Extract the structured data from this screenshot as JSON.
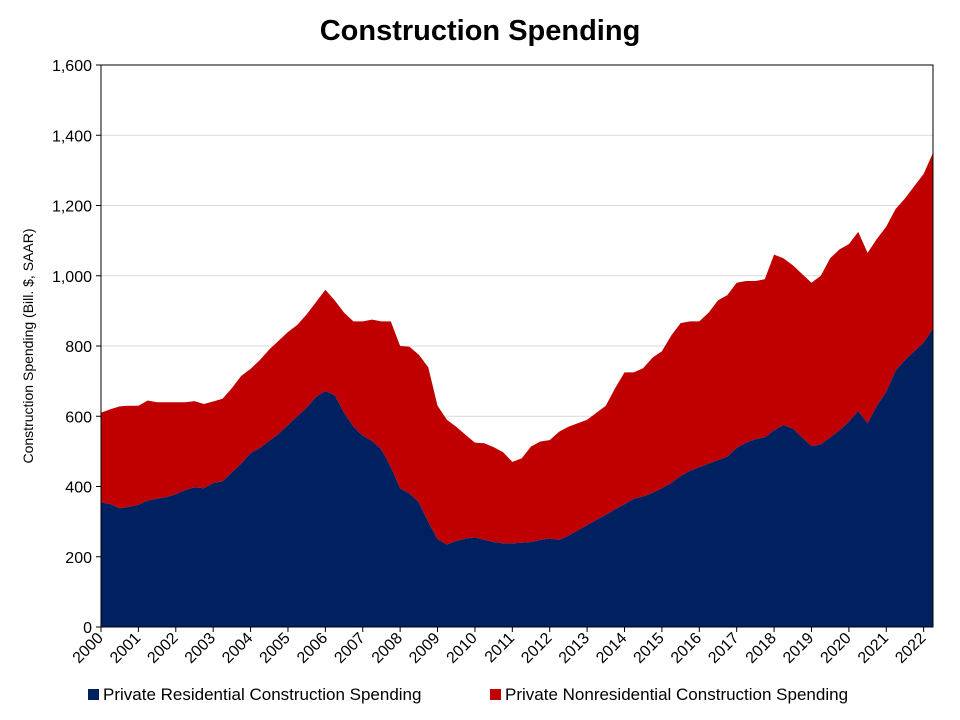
{
  "chart_data": {
    "type": "area",
    "stacked": true,
    "title": "Construction Spending",
    "xlabel": "",
    "ylabel": "Construction Spending (Bill. $, SAAR)",
    "ylim": [
      0,
      1600
    ],
    "yticks": [
      0,
      200,
      400,
      600,
      800,
      1000,
      1200,
      1400,
      1600
    ],
    "ytick_labels": [
      "0",
      "200",
      "400",
      "600",
      "800",
      "1,000",
      "1,200",
      "1,400",
      "1,600"
    ],
    "xlim": [
      2000,
      2022.25
    ],
    "xticks": [
      "2000",
      "2001",
      "2002",
      "2003",
      "2004",
      "2005",
      "2006",
      "2007",
      "2008",
      "2009",
      "2010",
      "2011",
      "2012",
      "2013",
      "2014",
      "2015",
      "2016",
      "2017",
      "2018",
      "2019",
      "2020",
      "2021",
      "2022"
    ],
    "grid": true,
    "legend_position": "bottom",
    "series": [
      {
        "name": "Private Residential Construction Spending",
        "color": "#002060",
        "x": [
          2000.0,
          2000.25,
          2000.5,
          2000.75,
          2001.0,
          2001.25,
          2001.5,
          2001.75,
          2002.0,
          2002.25,
          2002.5,
          2002.75,
          2003.0,
          2003.25,
          2003.5,
          2003.75,
          2004.0,
          2004.25,
          2004.5,
          2004.75,
          2005.0,
          2005.25,
          2005.5,
          2005.75,
          2006.0,
          2006.25,
          2006.5,
          2006.75,
          2007.0,
          2007.25,
          2007.5,
          2007.75,
          2008.0,
          2008.25,
          2008.5,
          2008.75,
          2009.0,
          2009.25,
          2009.5,
          2009.75,
          2010.0,
          2010.25,
          2010.5,
          2010.75,
          2011.0,
          2011.25,
          2011.5,
          2011.75,
          2012.0,
          2012.25,
          2012.5,
          2012.75,
          2013.0,
          2013.25,
          2013.5,
          2013.75,
          2014.0,
          2014.25,
          2014.5,
          2014.75,
          2015.0,
          2015.25,
          2015.5,
          2015.75,
          2016.0,
          2016.25,
          2016.5,
          2016.75,
          2017.0,
          2017.25,
          2017.5,
          2017.75,
          2018.0,
          2018.25,
          2018.5,
          2018.75,
          2019.0,
          2019.25,
          2019.5,
          2019.75,
          2020.0,
          2020.25,
          2020.5,
          2020.75,
          2021.0,
          2021.25,
          2021.5,
          2021.75,
          2022.0,
          2022.25
        ],
        "values": [
          355,
          350,
          338,
          342,
          348,
          360,
          365,
          370,
          378,
          390,
          398,
          395,
          410,
          415,
          440,
          465,
          495,
          510,
          530,
          550,
          575,
          600,
          625,
          655,
          672,
          660,
          610,
          570,
          545,
          530,
          505,
          455,
          395,
          380,
          355,
          300,
          250,
          235,
          245,
          252,
          255,
          248,
          242,
          238,
          238,
          240,
          242,
          248,
          252,
          248,
          260,
          275,
          290,
          305,
          320,
          335,
          350,
          365,
          372,
          382,
          395,
          410,
          430,
          445,
          455,
          465,
          475,
          485,
          510,
          525,
          535,
          540,
          560,
          575,
          565,
          540,
          515,
          520,
          540,
          560,
          585,
          615,
          580,
          630,
          670,
          730,
          760,
          785,
          810,
          850
        ]
      },
      {
        "name": "Private Nonresidential Construction Spending",
        "color": "#c00000",
        "x": [
          2000.0,
          2000.25,
          2000.5,
          2000.75,
          2001.0,
          2001.25,
          2001.5,
          2001.75,
          2002.0,
          2002.25,
          2002.5,
          2002.75,
          2003.0,
          2003.25,
          2003.5,
          2003.75,
          2004.0,
          2004.25,
          2004.5,
          2004.75,
          2005.0,
          2005.25,
          2005.5,
          2005.75,
          2006.0,
          2006.25,
          2006.5,
          2006.75,
          2007.0,
          2007.25,
          2007.5,
          2007.75,
          2008.0,
          2008.25,
          2008.5,
          2008.75,
          2009.0,
          2009.25,
          2009.5,
          2009.75,
          2010.0,
          2010.25,
          2010.5,
          2010.75,
          2011.0,
          2011.25,
          2011.5,
          2011.75,
          2012.0,
          2012.25,
          2012.5,
          2012.75,
          2013.0,
          2013.25,
          2013.5,
          2013.75,
          2014.0,
          2014.25,
          2014.5,
          2014.75,
          2015.0,
          2015.25,
          2015.5,
          2015.75,
          2016.0,
          2016.25,
          2016.5,
          2016.75,
          2017.0,
          2017.25,
          2017.5,
          2017.75,
          2018.0,
          2018.25,
          2018.5,
          2018.75,
          2019.0,
          2019.25,
          2019.5,
          2019.75,
          2020.0,
          2020.25,
          2020.5,
          2020.75,
          2021.0,
          2021.25,
          2021.5,
          2021.75,
          2022.0,
          2022.25
        ],
        "values": [
          255,
          270,
          290,
          288,
          282,
          285,
          275,
          270,
          262,
          250,
          245,
          240,
          232,
          235,
          240,
          250,
          240,
          250,
          260,
          265,
          265,
          260,
          265,
          270,
          288,
          270,
          285,
          300,
          325,
          345,
          365,
          415,
          405,
          418,
          420,
          440,
          380,
          355,
          325,
          295,
          270,
          275,
          270,
          260,
          232,
          240,
          272,
          280,
          280,
          308,
          310,
          305,
          300,
          305,
          310,
          345,
          375,
          360,
          365,
          385,
          390,
          420,
          435,
          425,
          415,
          430,
          455,
          460,
          470,
          460,
          450,
          450,
          500,
          475,
          465,
          465,
          465,
          480,
          510,
          515,
          505,
          510,
          485,
          475,
          470,
          460,
          460,
          470,
          480,
          500
        ]
      }
    ]
  }
}
